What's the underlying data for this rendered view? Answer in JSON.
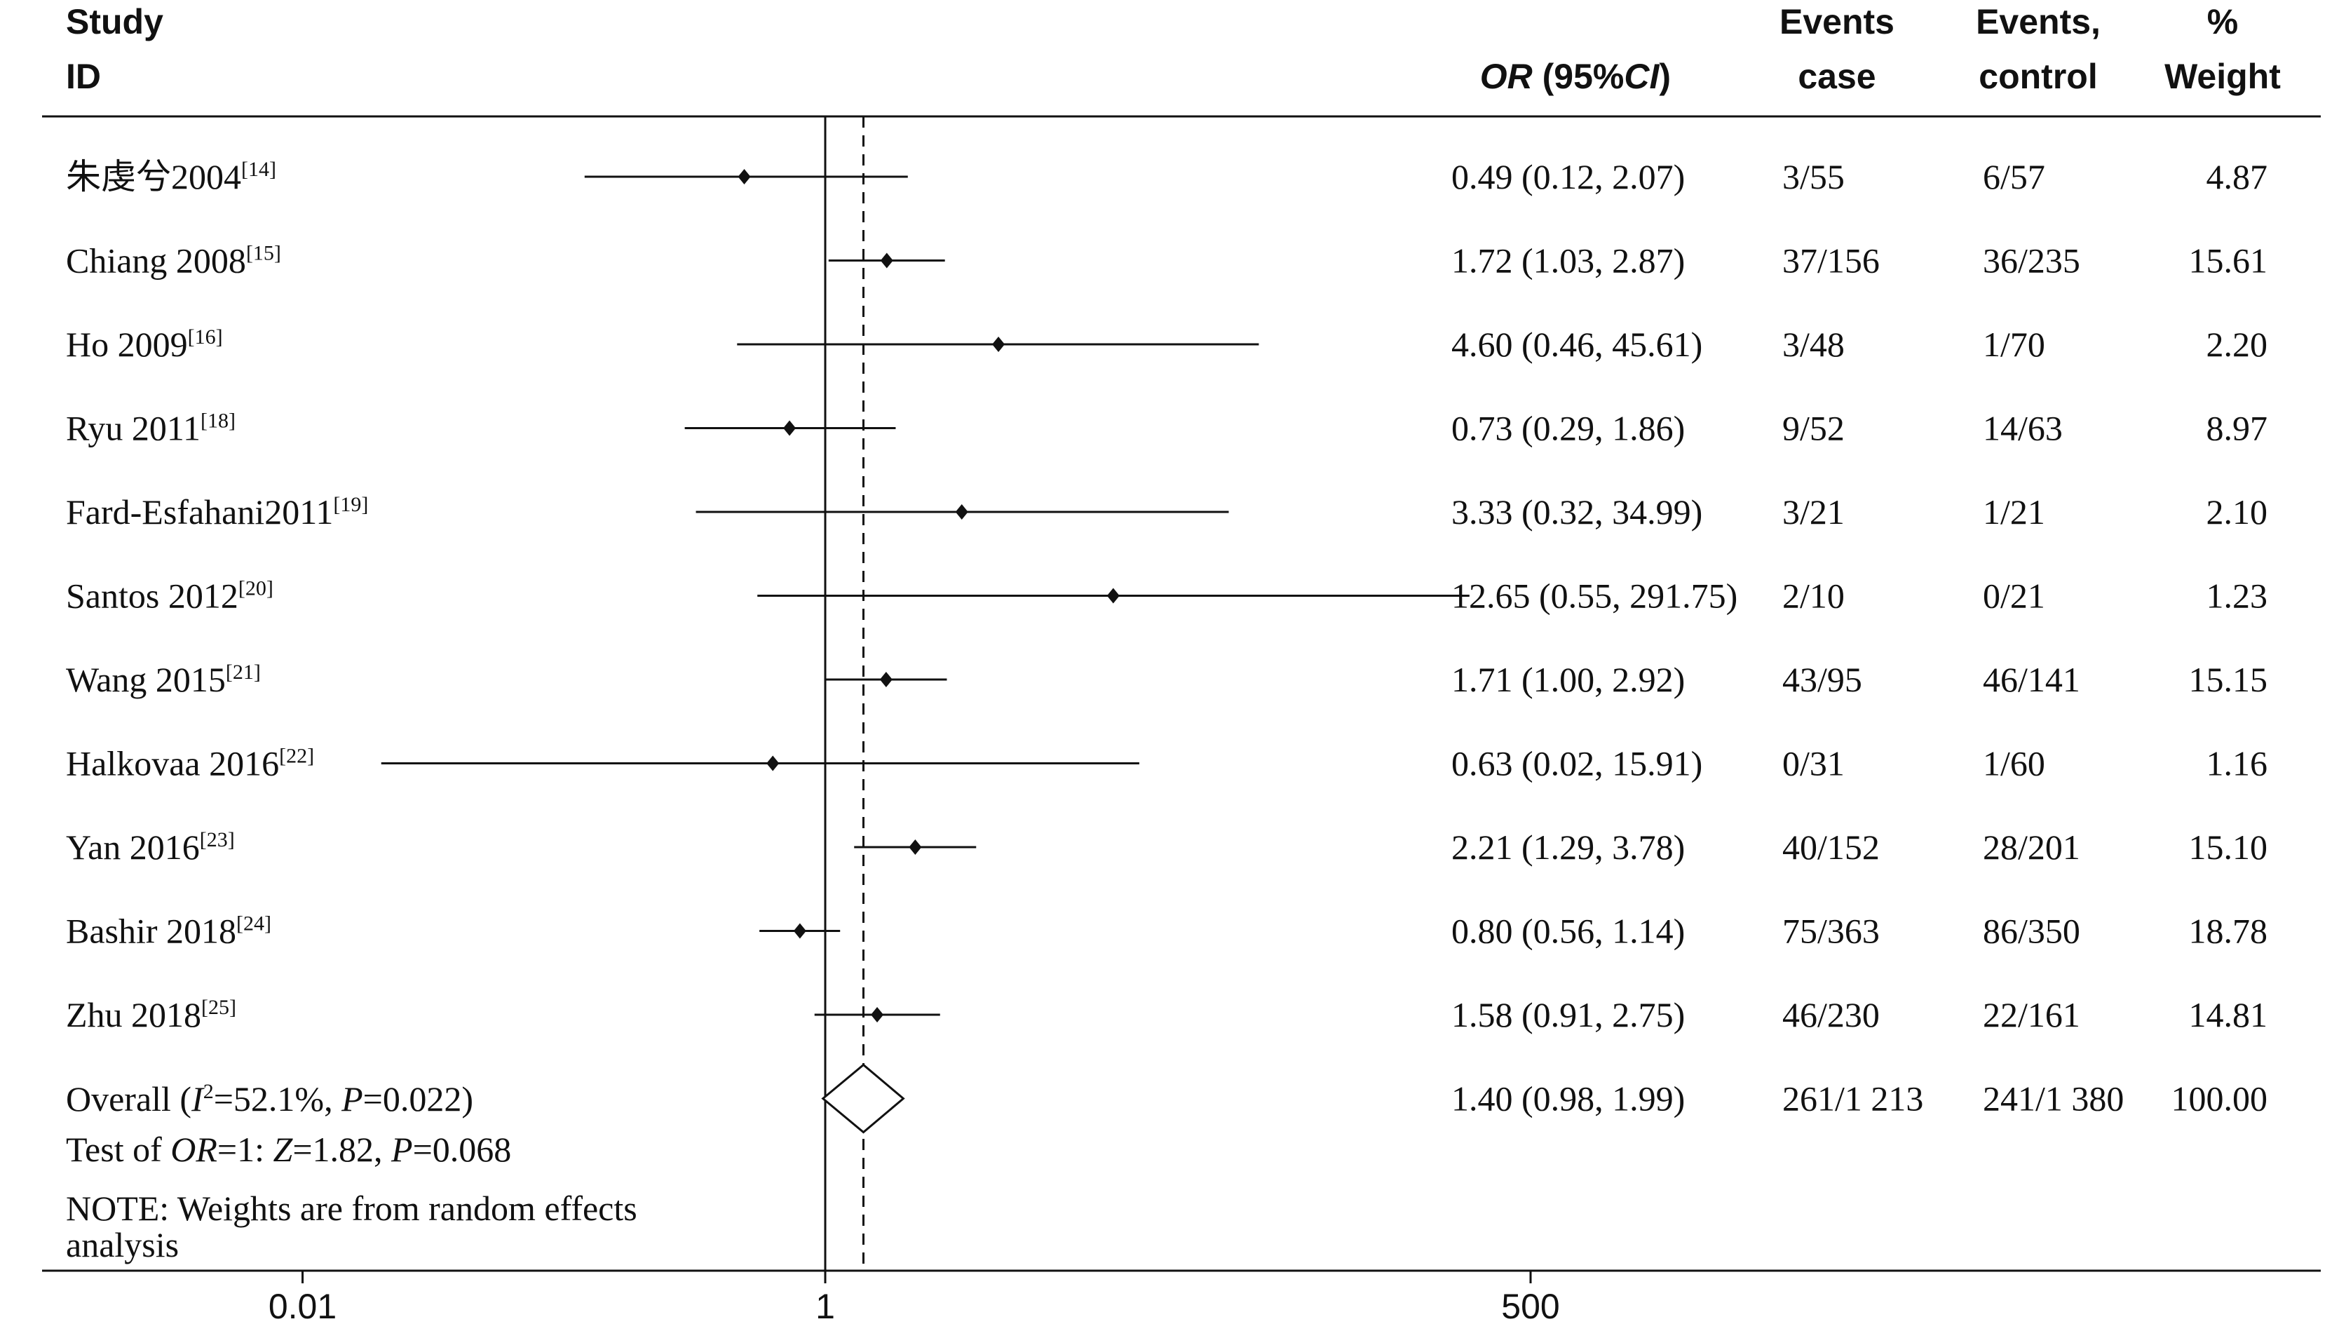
{
  "header": {
    "study_line1": "Study",
    "study_line2": "ID",
    "or_italic": "OR",
    "or_mid": " (95%",
    "or_ci_italic": "CI",
    "or_end": ")",
    "events_case_line1": "Events",
    "events_case_line2": "case",
    "events_control_line1": "Events,",
    "events_control_line2": "control",
    "weight_line1": "%",
    "weight_line2": "Weight"
  },
  "chart_data": {
    "type": "forest",
    "x_scale": "log",
    "x_ticks": [
      {
        "value": 0.01,
        "label": "0.01"
      },
      {
        "value": 1,
        "label": "1"
      },
      {
        "value": 500,
        "label": "500"
      }
    ],
    "null_value": 1,
    "studies": [
      {
        "name": "朱虔兮2004",
        "ref": "[14]",
        "or": 0.49,
        "lower": 0.12,
        "upper": 2.07,
        "or_text": "0.49 (0.12, 2.07)",
        "events_case": "3/55",
        "events_control": "6/57",
        "weight": "4.87"
      },
      {
        "name": "Chiang 2008",
        "ref": "[15]",
        "or": 1.72,
        "lower": 1.03,
        "upper": 2.87,
        "or_text": "1.72 (1.03, 2.87)",
        "events_case": "37/156",
        "events_control": "36/235",
        "weight": "15.61"
      },
      {
        "name": "Ho 2009",
        "ref": "[16]",
        "or": 4.6,
        "lower": 0.46,
        "upper": 45.61,
        "or_text": "4.60 (0.46, 45.61)",
        "events_case": "3/48",
        "events_control": "1/70",
        "weight": "2.20"
      },
      {
        "name": "Ryu 2011",
        "ref": "[18]",
        "or": 0.73,
        "lower": 0.29,
        "upper": 1.86,
        "or_text": "0.73 (0.29, 1.86)",
        "events_case": "9/52",
        "events_control": "14/63",
        "weight": "8.97"
      },
      {
        "name": "Fard-Esfahani2011",
        "ref": "[19]",
        "or": 3.33,
        "lower": 0.32,
        "upper": 34.99,
        "or_text": "3.33 (0.32, 34.99)",
        "events_case": "3/21",
        "events_control": "1/21",
        "weight": "2.10"
      },
      {
        "name": "Santos 2012",
        "ref": "[20]",
        "or": 12.65,
        "lower": 0.55,
        "upper": 291.75,
        "or_text": "12.65 (0.55, 291.75)",
        "events_case": "2/10",
        "events_control": "0/21",
        "weight": "1.23"
      },
      {
        "name": "Wang 2015",
        "ref": "[21]",
        "or": 1.71,
        "lower": 1.0,
        "upper": 2.92,
        "or_text": "1.71 (1.00, 2.92)",
        "events_case": "43/95",
        "events_control": "46/141",
        "weight": "15.15"
      },
      {
        "name": "Halkovaa 2016",
        "ref": "[22]",
        "or": 0.63,
        "lower": 0.02,
        "upper": 15.91,
        "or_text": "0.63 (0.02, 15.91)",
        "events_case": "0/31",
        "events_control": "1/60",
        "weight": "1.16"
      },
      {
        "name": "Yan 2016",
        "ref": "[23]",
        "or": 2.21,
        "lower": 1.29,
        "upper": 3.78,
        "or_text": "2.21 (1.29, 3.78)",
        "events_case": "40/152",
        "events_control": "28/201",
        "weight": "15.10"
      },
      {
        "name": "Bashir 2018",
        "ref": "[24]",
        "or": 0.8,
        "lower": 0.56,
        "upper": 1.14,
        "or_text": "0.80 (0.56, 1.14)",
        "events_case": "75/363",
        "events_control": "86/350",
        "weight": "18.78"
      },
      {
        "name": "Zhu 2018",
        "ref": "[25]",
        "or": 1.58,
        "lower": 0.91,
        "upper": 2.75,
        "or_text": "1.58 (0.91, 2.75)",
        "events_case": "46/230",
        "events_control": "22/161",
        "weight": "14.81"
      }
    ],
    "overall": {
      "or": 1.4,
      "lower": 0.98,
      "upper": 1.99,
      "or_text": "1.40 (0.98, 1.99)",
      "events_case": "261/1 213",
      "events_control": "241/1 380",
      "weight": "100.00",
      "label_prefix": "Overall  (",
      "i2_var": "I",
      "i2_sup": "2",
      "i2_rest": "=52.1%, ",
      "p_var": "P",
      "p_rest": "=0.022)"
    },
    "test": {
      "prefix": "Test of ",
      "or_var": "OR",
      "mid": "=1: ",
      "z_var": "Z",
      "z_rest": "=1.82, ",
      "p_var": "P",
      "p_rest": "=0.068"
    },
    "note": {
      "line1": "NOTE: Weights are from random effects",
      "line2": "analysis"
    }
  }
}
